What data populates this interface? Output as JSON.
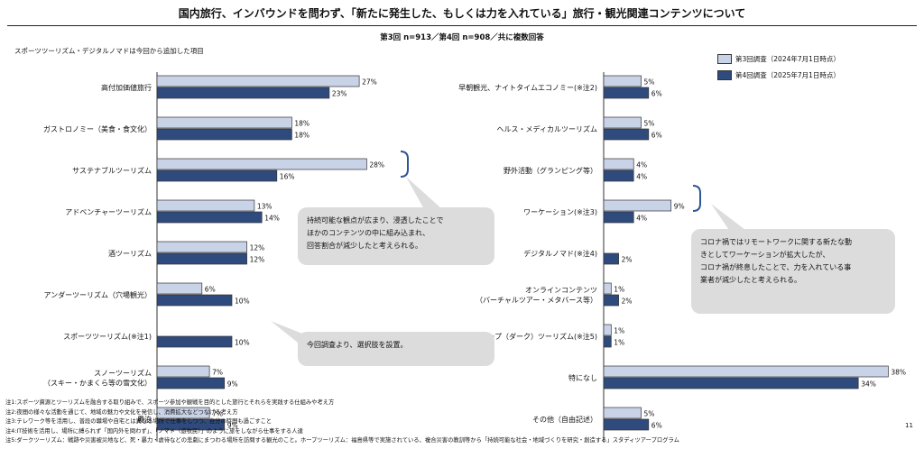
{
  "page": {
    "title": "国内旅行、インバウンドを問わず、「新たに発生した、もしくは力を入れている」旅行・観光関連コンテンツについて",
    "subtitle": "第3回 n=913／第4回 n=908／共に複数回答",
    "left_note": "スポーツツーリズム・デジタルノマドは今回から追加した項目",
    "page_number": "11"
  },
  "colors": {
    "series1": "#c9d3e8",
    "series2": "#2f4b7e",
    "bracket": "#2f5597",
    "callout": "#dcdcdc"
  },
  "callouts": {
    "left_sustainable": "持続可能な観点が広まり、浸透したことで\nほかのコンテンツの中に組み込まれ、\n回答割合が減少したと考えられる。",
    "left_sports": "今回調査より、選択肢を設置。",
    "right_workation": "コロナ禍ではリモートワークに関する新たな動\nきとしてワーケーションが拡大したが、\nコロナ禍が終息したことで、力を入れている事\n業者が減少したと考えられる。"
  },
  "footnotes": [
    "注1:スポーツ資源とツーリズムを融合する取り組みで、スポーツ参加や観戦を目的とした旅行とそれらを実践する仕組みや考え方",
    "注2:夜間の様々な活動を通じて、地域の魅力や文化を発信し、消費拡大などつなげる考え方",
    "注3:テレワーク等を活用し、普段の職場や自宅とは異なる場所で仕事をしつつ、自分の時間も過ごすこと",
    "注4:IT技術を活用し、場所に縛られず「国内外を問わず」、「ノマド（遊牧民）」のように旅をしながら仕事をする人達",
    "注5:ダークツーリズム：戦跡や災害被災地など、死・暴力・虐待などの悲劇にまつわる場所を訪問する観光のこと。ホープツーリズム：福島県等で実施されている、複合災害の教訓等から「持続可能な社会・地域づくりを研究・創造する」スタディツアープログラム"
  ],
  "chart_data": [
    {
      "type": "bar",
      "orientation": "horizontal",
      "categories": [
        "高付加価値旅行",
        "ガストロノミー（美食・食文化）",
        "サステナブルツーリズム",
        "アドベンチャーツーリズム",
        "酒ツーリズム",
        "アンダーツーリズム（穴場観光）",
        "スポーツツーリズム(※注1)",
        "スノーツーリズム\n（スキー・かまくら等の雪文化）",
        "農泊"
      ],
      "series": [
        {
          "name": "第3回調査（2024年7月1日時点）",
          "values": [
            27,
            18,
            28,
            13,
            12,
            6,
            null,
            7,
            7
          ],
          "labels": [
            "27%",
            "18%",
            "28%",
            "13%",
            "12%",
            "6%",
            "",
            "7%",
            "7%"
          ]
        },
        {
          "name": "第4回調査（2025年7月1日時点）",
          "values": [
            23,
            18,
            16,
            14,
            12,
            10,
            10,
            9,
            9
          ],
          "labels": [
            "23%",
            "18%",
            "16%",
            "14%",
            "12%",
            "10%",
            "10%",
            "9%",
            "9%"
          ]
        }
      ],
      "xlim": [
        0,
        30
      ]
    },
    {
      "type": "bar",
      "orientation": "horizontal",
      "categories": [
        "早朝観光、ナイトタイムエコノミー(※注2)",
        "ヘルス・メディカルツーリズム",
        "野外活動（グランピング等）",
        "ワーケーション(※注3)",
        "デジタルノマド(※注4)",
        "オンラインコンテンツ\n（バーチャルツアー・メタバース等）",
        "ホープ（ダーク）ツーリズム(※注5)",
        "特になし",
        "その他（自由記述）"
      ],
      "series": [
        {
          "name": "第3回調査（2024年7月1日時点）",
          "values": [
            5,
            5,
            4,
            9,
            null,
            1,
            1,
            38,
            5
          ],
          "labels": [
            "5%",
            "5%",
            "4%",
            "9%",
            "",
            "1%",
            "1%",
            "38%",
            "5%"
          ]
        },
        {
          "name": "第4回調査（2025年7月1日時点）",
          "values": [
            6,
            6,
            4,
            4,
            2,
            2,
            1,
            34,
            6
          ],
          "labels": [
            "6%",
            "6%",
            "4%",
            "4%",
            "2%",
            "2%",
            "1%",
            "34%",
            "6%"
          ]
        }
      ],
      "xlim": [
        0,
        40
      ]
    }
  ]
}
